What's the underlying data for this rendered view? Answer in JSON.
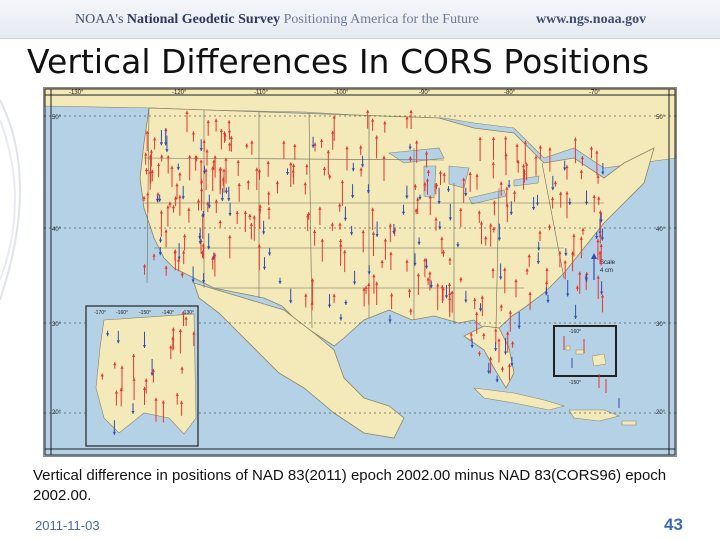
{
  "header": {
    "agency": "NOAA's",
    "survey": "National Geodetic Survey",
    "tagline": "Positioning America for the Future",
    "url": "www.ngs.noaa.gov"
  },
  "title": "Vertical Differences In CORS Positions",
  "map": {
    "lon_labels_top": [
      "-130°",
      "-120°",
      "-110°",
      "-100°",
      "-90°",
      "-80°",
      "-70°"
    ],
    "lat_labels": [
      "50°",
      "40°",
      "30°",
      "20°"
    ],
    "alaska_lon_labels": [
      "-170°",
      "-160°",
      "-150°",
      "-140°",
      "-130°"
    ],
    "hawaii_lon_labels": [
      "-160°",
      "-150°"
    ],
    "scale_label": "Scale",
    "scale_value": "4 cm",
    "colors": {
      "land": "#f3e9b9",
      "water": "#b4d1e6",
      "up_arrow": "#e8352e",
      "down_arrow": "#2c4fb5",
      "border": "#555555"
    }
  },
  "caption": "Vertical difference in positions of NAD 83(2011) epoch 2002.00 minus NAD 83(CORS96) epoch 2002.00.",
  "footer": {
    "date": "2011-11-03",
    "page": "43"
  }
}
